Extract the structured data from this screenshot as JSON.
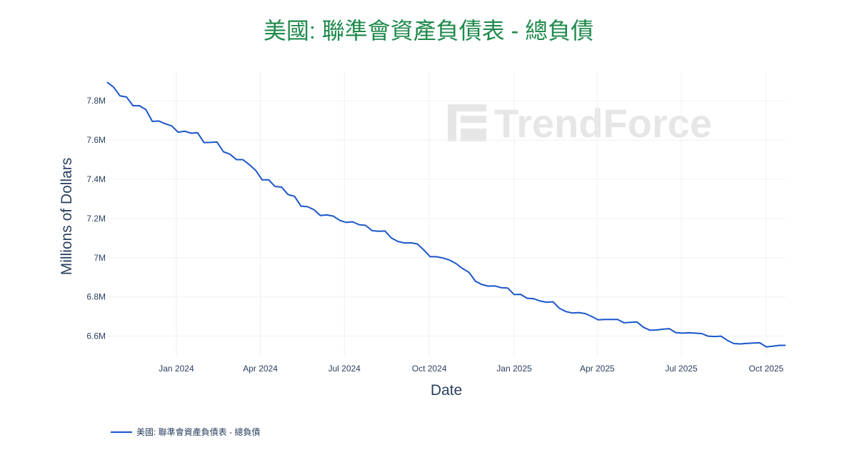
{
  "chart_data": {
    "type": "line",
    "title": "美國: 聯準會資產負債表 - 總負債",
    "xlabel": "Date",
    "ylabel": "Millions of Dollars",
    "ylim": [
      6500000,
      7950000
    ],
    "xlim": [
      "2023-10-18",
      "2025-10-22"
    ],
    "yticks": [
      {
        "value": 6600000,
        "label": "6.6M"
      },
      {
        "value": 6800000,
        "label": "6.8M"
      },
      {
        "value": 7000000,
        "label": "7M"
      },
      {
        "value": 7200000,
        "label": "7.2M"
      },
      {
        "value": 7400000,
        "label": "7.4M"
      },
      {
        "value": 7600000,
        "label": "7.6M"
      },
      {
        "value": 7800000,
        "label": "7.8M"
      }
    ],
    "xticks": [
      {
        "value": "2024-01-01",
        "label": "Jan 2024"
      },
      {
        "value": "2024-04-01",
        "label": "Apr 2024"
      },
      {
        "value": "2024-07-01",
        "label": "Jul 2024"
      },
      {
        "value": "2024-10-01",
        "label": "Oct 2024"
      },
      {
        "value": "2025-01-01",
        "label": "Jan 2025"
      },
      {
        "value": "2025-04-01",
        "label": "Apr 2025"
      },
      {
        "value": "2025-07-01",
        "label": "Jul 2025"
      },
      {
        "value": "2025-10-01",
        "label": "Oct 2025"
      }
    ],
    "grid": true,
    "legend_position": "bottom-left",
    "series": [
      {
        "name": "美國: 聯準會資產負債表 - 總負債",
        "color": "#1a56c9",
        "x": [
          "2023-10-18",
          "2023-10-25",
          "2023-11-01",
          "2023-11-08",
          "2023-11-15",
          "2023-11-22",
          "2023-11-29",
          "2023-12-06",
          "2023-12-13",
          "2023-12-20",
          "2023-12-27",
          "2024-01-03",
          "2024-01-10",
          "2024-01-17",
          "2024-01-24",
          "2024-01-31",
          "2024-02-07",
          "2024-02-14",
          "2024-02-21",
          "2024-02-28",
          "2024-03-06",
          "2024-03-13",
          "2024-03-20",
          "2024-03-27",
          "2024-04-03",
          "2024-04-10",
          "2024-04-17",
          "2024-04-24",
          "2024-05-01",
          "2024-05-08",
          "2024-05-15",
          "2024-05-22",
          "2024-05-29",
          "2024-06-05",
          "2024-06-12",
          "2024-06-19",
          "2024-06-26",
          "2024-07-03",
          "2024-07-10",
          "2024-07-17",
          "2024-07-24",
          "2024-07-31",
          "2024-08-07",
          "2024-08-14",
          "2024-08-21",
          "2024-08-28",
          "2024-09-04",
          "2024-09-11",
          "2024-09-18",
          "2024-09-25",
          "2024-10-02",
          "2024-10-09",
          "2024-10-16",
          "2024-10-23",
          "2024-10-30",
          "2024-11-06",
          "2024-11-13",
          "2024-11-20",
          "2024-11-27",
          "2024-12-04",
          "2024-12-11",
          "2024-12-18",
          "2024-12-25",
          "2025-01-01",
          "2025-01-08",
          "2025-01-15",
          "2025-01-22",
          "2025-01-29",
          "2025-02-05",
          "2025-02-12",
          "2025-02-19",
          "2025-02-26",
          "2025-03-05",
          "2025-03-12",
          "2025-03-19",
          "2025-03-26",
          "2025-04-02",
          "2025-04-09",
          "2025-04-16",
          "2025-04-23",
          "2025-04-30",
          "2025-05-07",
          "2025-05-14",
          "2025-05-21",
          "2025-05-28",
          "2025-06-04",
          "2025-06-11",
          "2025-06-18",
          "2025-06-25",
          "2025-07-02",
          "2025-07-09",
          "2025-07-16",
          "2025-07-23",
          "2025-07-30",
          "2025-08-06",
          "2025-08-13",
          "2025-08-20",
          "2025-08-27",
          "2025-09-03",
          "2025-09-10",
          "2025-09-17",
          "2025-09-24",
          "2025-10-01",
          "2025-10-08",
          "2025-10-15",
          "2025-10-22"
        ],
        "values": [
          7895000,
          7870000,
          7825000,
          7820000,
          7775000,
          7775000,
          7755000,
          7695000,
          7697000,
          7683000,
          7672000,
          7640000,
          7645000,
          7635000,
          7637000,
          7587000,
          7588000,
          7590000,
          7540000,
          7528000,
          7500000,
          7500000,
          7475000,
          7445000,
          7397000,
          7397000,
          7363000,
          7360000,
          7322000,
          7313000,
          7263000,
          7260000,
          7245000,
          7215000,
          7218000,
          7212000,
          7190000,
          7180000,
          7183000,
          7168000,
          7165000,
          7138000,
          7135000,
          7136000,
          7100000,
          7083000,
          7075000,
          7076000,
          7070000,
          7040000,
          7005000,
          7005000,
          6998000,
          6988000,
          6970000,
          6945000,
          6925000,
          6880000,
          6863000,
          6855000,
          6856000,
          6847000,
          6845000,
          6812000,
          6813000,
          6793000,
          6791000,
          6779000,
          6773000,
          6775000,
          6742000,
          6725000,
          6718000,
          6720000,
          6715000,
          6700000,
          6683000,
          6685000,
          6685000,
          6685000,
          6668000,
          6670000,
          6672000,
          6645000,
          6630000,
          6631000,
          6635000,
          6638000,
          6618000,
          6615000,
          6617000,
          6615000,
          6613000,
          6600000,
          6598000,
          6600000,
          6578000,
          6562000,
          6560000,
          6563000,
          6565000,
          6566000,
          6545000,
          6548000,
          6553000,
          6553000
        ]
      }
    ]
  },
  "watermark": {
    "text": "TrendForce",
    "icon": "trendforce-logo-icon"
  }
}
